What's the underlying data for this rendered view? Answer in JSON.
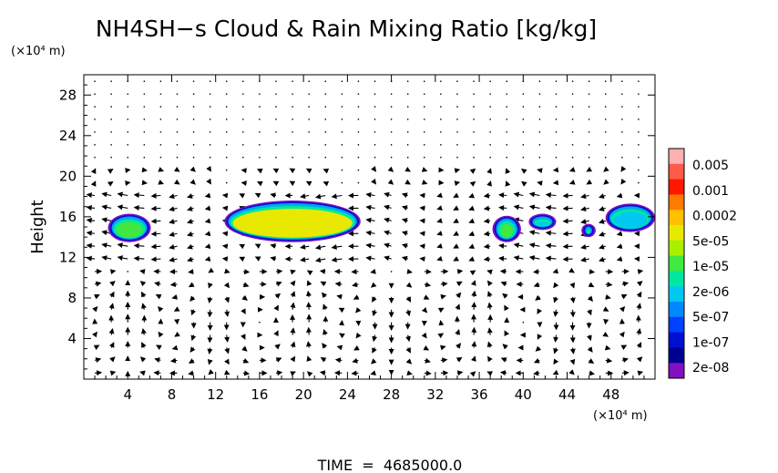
{
  "chart_data": {
    "type": "heatmap",
    "title": "NH4SH−s Cloud & Rain Mixing Ratio [kg/kg]",
    "ylabel": "Height",
    "y_unit": "(×10⁴ m)",
    "x_unit": "(×10⁴ m)",
    "footer": "TIME  =  4685000.0",
    "xlim": [
      0,
      52
    ],
    "ylim": [
      0,
      30
    ],
    "x_ticks": [
      4,
      8,
      12,
      16,
      20,
      24,
      28,
      32,
      36,
      40,
      44,
      48
    ],
    "y_ticks": [
      4,
      8,
      12,
      16,
      20,
      24,
      28
    ],
    "colorbar": {
      "labels": [
        "0.005",
        "0.001",
        "0.0002",
        "5e-05",
        "1e-05",
        "2e-06",
        "5e-07",
        "1e-07",
        "2e-08"
      ],
      "colors": [
        "#ffb0b0",
        "#ff5a4a",
        "#ff1800",
        "#ff7a00",
        "#ffc000",
        "#e8e800",
        "#a8f000",
        "#40e840",
        "#00e8a0",
        "#00c8f0",
        "#0088ff",
        "#0040ff",
        "#0010d0",
        "#000090",
        "#8010c0"
      ]
    },
    "cloud_regions": [
      {
        "x": [
          2.2,
          6.1
        ],
        "y": [
          13.5,
          16.3
        ],
        "level": "1e-05"
      },
      {
        "x": [
          12.8,
          25.2
        ],
        "y": [
          13.5,
          17.6
        ],
        "level": "0.0002"
      },
      {
        "x": [
          37.2,
          39.8
        ],
        "y": [
          13.5,
          16.1
        ],
        "level": "1e-05"
      },
      {
        "x": [
          40.5,
          43.0
        ],
        "y": [
          14.7,
          16.3
        ],
        "level": "2e-06"
      },
      {
        "x": [
          45.3,
          46.6
        ],
        "y": [
          14.0,
          15.3
        ],
        "level": "1e-05"
      },
      {
        "x": [
          47.5,
          52.0
        ],
        "y": [
          14.5,
          17.3
        ],
        "level": "5e-06"
      }
    ]
  }
}
